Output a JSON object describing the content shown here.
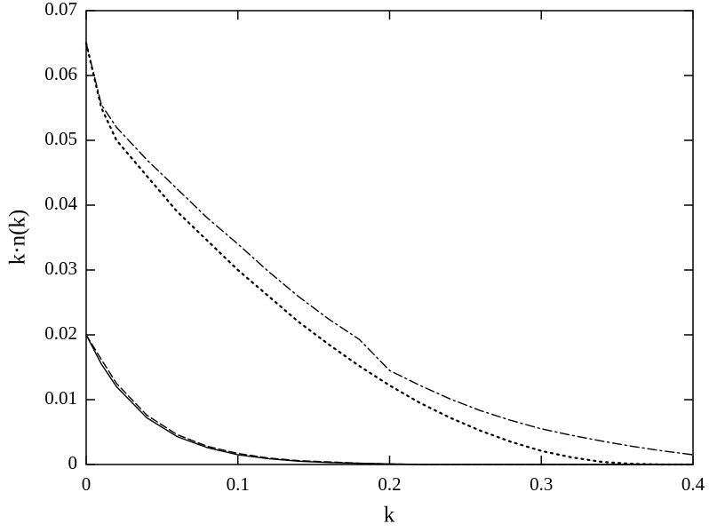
{
  "chart_data": {
    "type": "line",
    "x_label": "k",
    "y_label": "k·n(k)",
    "x": [
      0,
      0.01,
      0.02,
      0.04,
      0.06,
      0.08,
      0.1,
      0.12,
      0.14,
      0.16,
      0.18,
      0.2,
      0.22,
      0.24,
      0.26,
      0.28,
      0.3,
      0.32,
      0.34,
      0.36,
      0.38,
      0.4
    ],
    "series": [
      {
        "color": "#000000",
        "dash": "solid",
        "values": [
          0.02,
          0.0155,
          0.012,
          0.0072,
          0.0043,
          0.0026,
          0.0015,
          0.0009,
          0.0005,
          0.0003,
          0.0002,
          0.0001,
          0,
          0,
          0,
          0,
          0,
          0,
          0,
          0,
          0,
          0
        ]
      },
      {
        "color": "#000000",
        "dash": "dashed",
        "values": [
          0.02,
          0.0162,
          0.0125,
          0.0076,
          0.0046,
          0.0028,
          0.0017,
          0.001,
          0.0006,
          0.0004,
          0.0002,
          0.0001,
          0,
          0,
          0,
          0,
          0,
          0,
          0,
          0,
          0,
          0
        ]
      },
      {
        "color": "#000000",
        "dash": "dotted",
        "values": [
          0.065,
          0.055,
          0.05,
          0.0445,
          0.039,
          0.0345,
          0.03,
          0.026,
          0.022,
          0.0185,
          0.0152,
          0.0122,
          0.0095,
          0.0072,
          0.0052,
          0.0035,
          0.0021,
          0.0011,
          0.0004,
          0.0001,
          0,
          0
        ]
      },
      {
        "color": "#000000",
        "dash": "dashdot",
        "values": [
          0.065,
          0.0555,
          0.052,
          0.047,
          0.0425,
          0.038,
          0.034,
          0.0298,
          0.0259,
          0.0224,
          0.0193,
          0.0145,
          0.0122,
          0.0101,
          0.0083,
          0.0068,
          0.0055,
          0.0045,
          0.0036,
          0.0028,
          0.0021,
          0.0015
        ]
      }
    ],
    "xlim": [
      0,
      0.4
    ],
    "ylim": [
      0,
      0.07
    ],
    "xticks": [
      0,
      0.1,
      0.2,
      0.3,
      0.4
    ],
    "yticks": [
      0,
      0.01,
      0.02,
      0.03,
      0.04,
      0.05,
      0.06,
      0.07
    ],
    "grid": false
  }
}
